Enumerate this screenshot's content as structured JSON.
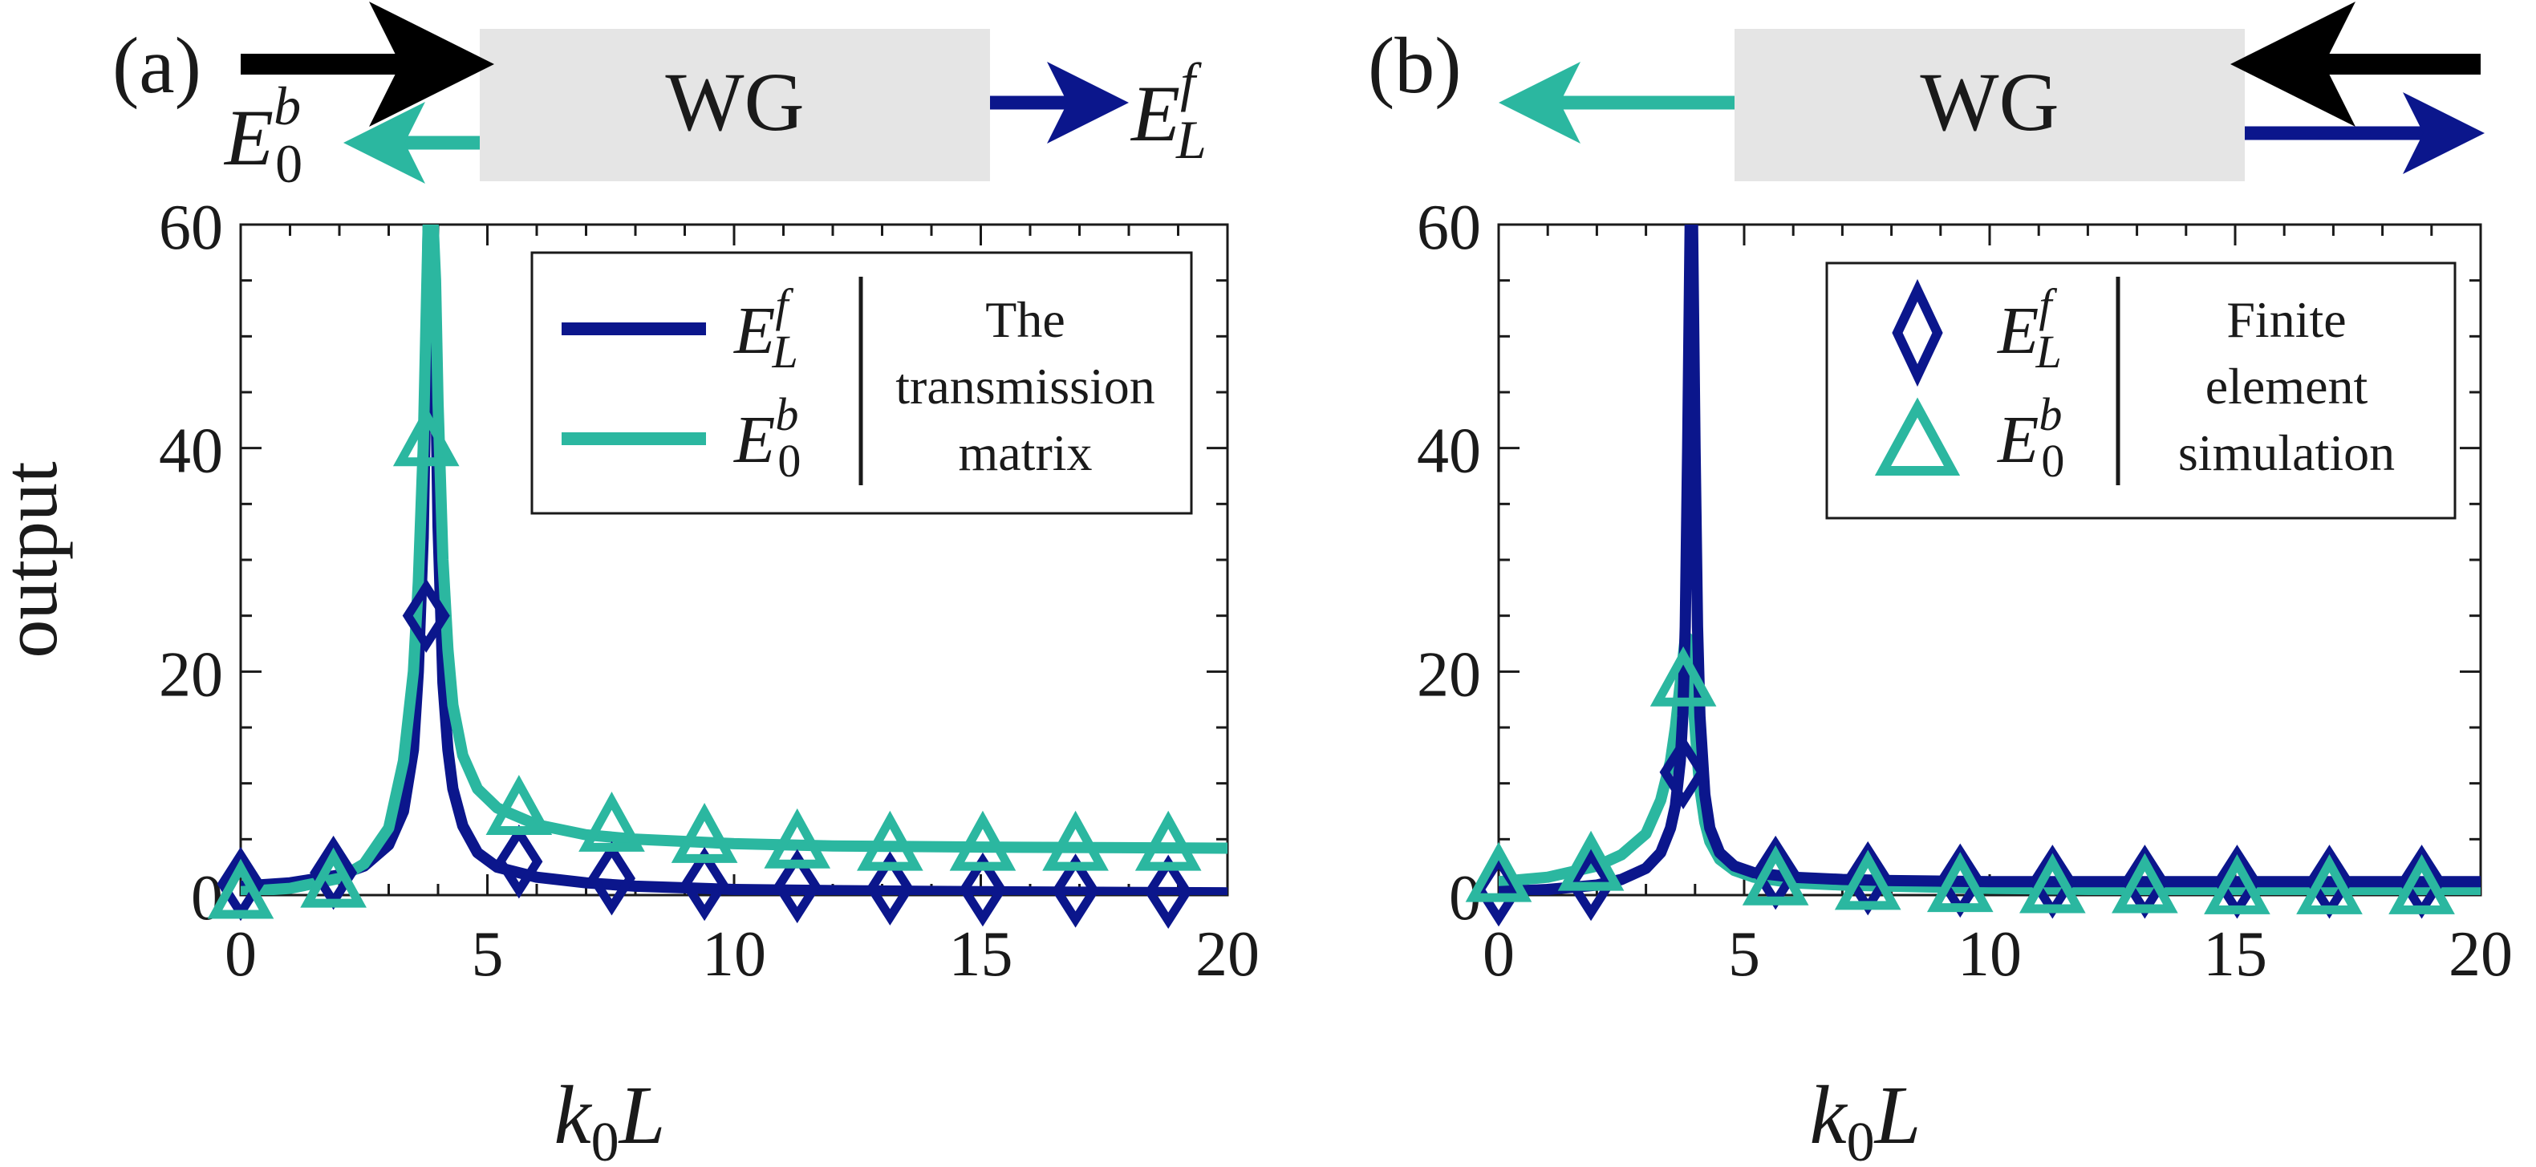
{
  "colors": {
    "navy": "#0b168c",
    "teal": "#2bb7a0",
    "black": "#000000",
    "box": "#e5e5e5",
    "axis": "#1a1a1a"
  },
  "schematics": [
    {
      "panel_label": "(a)",
      "box_label": "WG",
      "left_label": {
        "base": "E",
        "sup": "b",
        "sub": "0"
      },
      "right_label": {
        "base": "E",
        "sup": "f",
        "sub": "L"
      }
    },
    {
      "panel_label": "(b)",
      "box_label": "WG"
    }
  ],
  "chart_data": [
    {
      "type": "line",
      "panel": "(a)",
      "xlabel": {
        "main": "k",
        "sub": "0",
        "tail": "L"
      },
      "ylabel": "output",
      "xlim": [
        0,
        20
      ],
      "ylim": [
        0,
        60
      ],
      "x_ticks": [
        0,
        5,
        10,
        15,
        20
      ],
      "y_ticks": [
        0,
        20,
        40,
        60
      ],
      "series": [
        {
          "name": "E_L^f",
          "legend": {
            "base": "E",
            "sup": "f",
            "sub": "L"
          },
          "color": "#0b168c",
          "style": "line",
          "x": [
            0,
            1,
            2,
            2.5,
            3,
            3.3,
            3.5,
            3.6,
            3.7,
            3.75,
            3.8,
            3.85,
            3.9,
            3.95,
            4.0,
            4.1,
            4.2,
            4.3,
            4.5,
            4.8,
            5.2,
            6,
            7,
            8,
            10,
            12,
            15,
            20
          ],
          "y": [
            0.8,
            1.1,
            1.8,
            2.6,
            4.5,
            7.5,
            13,
            20,
            32,
            45,
            60,
            60,
            60,
            47,
            33,
            19,
            13,
            9.5,
            6.2,
            3.8,
            2.5,
            1.6,
            1.1,
            0.8,
            0.5,
            0.4,
            0.3,
            0.2
          ]
        },
        {
          "name": "E_0^b",
          "legend": {
            "base": "E",
            "sup": "b",
            "sub": "0"
          },
          "color": "#2bb7a0",
          "style": "line",
          "x": [
            0,
            1,
            2,
            2.5,
            3,
            3.3,
            3.5,
            3.6,
            3.7,
            3.75,
            3.8,
            3.85,
            3.9,
            3.95,
            4.0,
            4.1,
            4.2,
            4.3,
            4.5,
            4.8,
            5.2,
            6,
            7,
            8,
            10,
            12,
            15,
            20
          ],
          "y": [
            0.3,
            0.6,
            1.5,
            2.8,
            6,
            12,
            20,
            28,
            40,
            50,
            60,
            60,
            60,
            55,
            44,
            30,
            22,
            17,
            12.5,
            9.5,
            7.8,
            6.3,
            5.4,
            5.0,
            4.6,
            4.4,
            4.3,
            4.2
          ]
        },
        {
          "name": "E_L^f markers",
          "color": "#0b168c",
          "style": "diamond",
          "x": [
            0,
            1.88,
            3.76,
            5.64,
            7.52,
            9.4,
            11.28,
            13.16,
            15.04,
            16.92,
            18.8
          ],
          "y": [
            1,
            2,
            25,
            3,
            1.5,
            1,
            0.8,
            0.6,
            0.5,
            0.4,
            0.3
          ]
        },
        {
          "name": "E_0^b markers",
          "color": "#2bb7a0",
          "style": "triangle",
          "x": [
            0,
            1.88,
            3.76,
            5.64,
            7.52,
            9.4,
            11.28,
            13.16,
            15.04,
            16.92,
            18.8
          ],
          "y": [
            0,
            1,
            40.5,
            7.5,
            6,
            5,
            4.5,
            4.3,
            4.3,
            4.3,
            4.3
          ]
        }
      ],
      "legend": {
        "text_lines": [
          "The",
          "transmission",
          "matrix"
        ],
        "placement": "top-right"
      }
    },
    {
      "type": "line",
      "panel": "(b)",
      "xlabel": {
        "main": "k",
        "sub": "0",
        "tail": "L"
      },
      "xlim": [
        0,
        20
      ],
      "ylim": [
        0,
        60
      ],
      "x_ticks": [
        0,
        5,
        10,
        15,
        20
      ],
      "y_ticks": [
        0,
        20,
        40,
        60
      ],
      "series": [
        {
          "name": "E_0^b",
          "color": "#2bb7a0",
          "style": "line",
          "x": [
            0,
            1,
            2,
            2.5,
            3,
            3.3,
            3.5,
            3.6,
            3.7,
            3.75,
            3.8,
            3.85,
            3.9,
            3.95,
            4.0,
            4.05,
            4.1,
            4.2,
            4.3,
            4.5,
            4.8,
            5.2,
            6,
            7,
            8,
            10,
            12,
            15,
            20
          ],
          "y": [
            1.2,
            1.6,
            2.6,
            3.6,
            5.5,
            8.5,
            12,
            15,
            19,
            21,
            23,
            23,
            21,
            18,
            15,
            12,
            9.5,
            6.5,
            4.8,
            3.2,
            2.2,
            1.6,
            1.1,
            0.9,
            0.8,
            0.6,
            0.5,
            0.4,
            0.3
          ]
        },
        {
          "name": "E_L^f",
          "color": "#0b168c",
          "style": "line",
          "x": [
            0,
            1,
            2,
            2.5,
            3,
            3.3,
            3.5,
            3.6,
            3.7,
            3.75,
            3.8,
            3.85,
            3.9,
            3.95,
            4.0,
            4.05,
            4.1,
            4.2,
            4.3,
            4.5,
            4.8,
            5.2,
            6,
            7,
            8,
            10,
            12,
            15,
            20
          ],
          "y": [
            0.3,
            0.5,
            0.9,
            1.4,
            2.4,
            3.8,
            6,
            8,
            12,
            16,
            24,
            40,
            60,
            60,
            40,
            24,
            16,
            9,
            6,
            3.8,
            2.6,
            2.0,
            1.6,
            1.4,
            1.3,
            1.2,
            1.2,
            1.2,
            1.2
          ]
        },
        {
          "name": "E_L^f",
          "legend": {
            "base": "E",
            "sup": "f",
            "sub": "L"
          },
          "color": "#0b168c",
          "style": "diamond",
          "x": [
            0,
            1.88,
            3.76,
            5.64,
            7.52,
            9.4,
            11.28,
            13.16,
            15.04,
            16.92,
            18.8
          ],
          "y": [
            0.5,
            1,
            11,
            2,
            1.5,
            1.3,
            1.2,
            1.2,
            1.2,
            1.2,
            1.2
          ]
        },
        {
          "name": "E_0^b",
          "legend": {
            "base": "E",
            "sup": "b",
            "sub": "0"
          },
          "color": "#2bb7a0",
          "style": "triangle",
          "x": [
            0,
            1.88,
            3.76,
            5.64,
            7.52,
            9.4,
            11.28,
            13.16,
            15.04,
            16.92,
            18.8
          ],
          "y": [
            1.5,
            2.5,
            19,
            1.2,
            0.8,
            0.6,
            0.5,
            0.5,
            0.4,
            0.4,
            0.4
          ]
        }
      ],
      "legend": {
        "text_lines": [
          "Finite",
          "element",
          "simulation"
        ],
        "placement": "top-right"
      }
    }
  ]
}
